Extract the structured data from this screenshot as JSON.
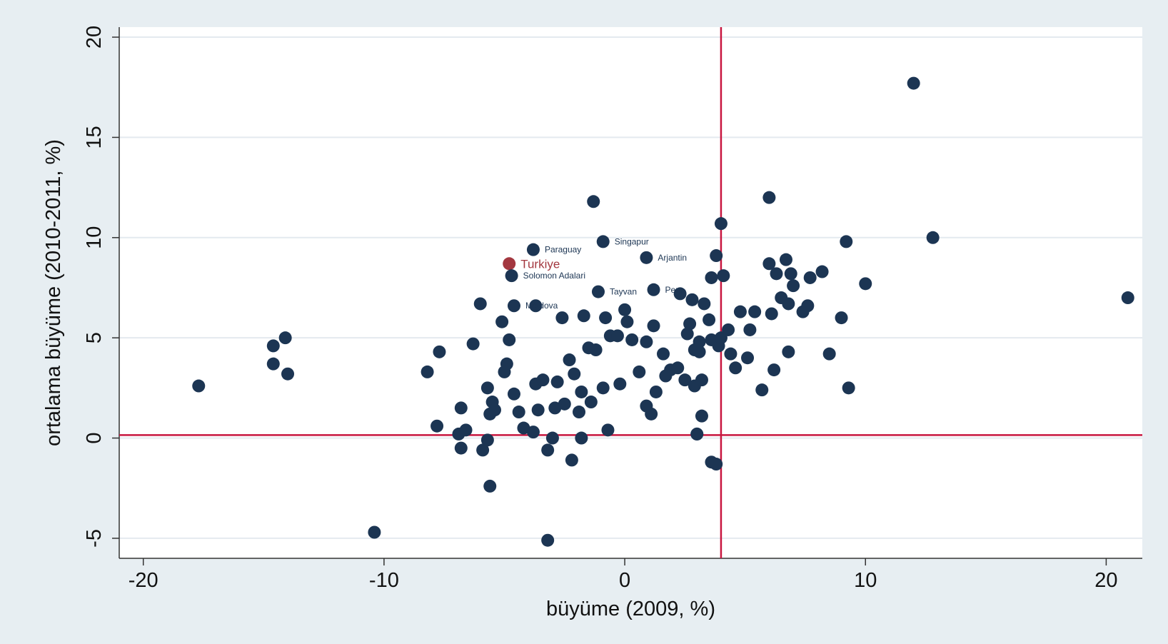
{
  "chart_data": {
    "type": "scatter",
    "title": "",
    "xlabel": "büyüme (2009, %)",
    "ylabel": "ortalama büyüme (2010-2011, %)",
    "xlim": [
      -21,
      21.5
    ],
    "ylim": [
      -6,
      20.5
    ],
    "xticks": [
      -20,
      -10,
      0,
      10,
      20
    ],
    "xtick_labels": [
      "-20",
      "-10",
      "0",
      "10",
      "20"
    ],
    "yticks": [
      -5,
      0,
      5,
      10,
      15,
      20
    ],
    "ytick_labels": [
      "-5",
      "0",
      "5",
      "10",
      "15",
      "20"
    ],
    "grid": "horizontal",
    "reference_lines": {
      "x": 4.0,
      "y": 0.15
    },
    "colors": {
      "point": "#1c3553",
      "highlight": "#a3373f",
      "refline": "#c8163f",
      "plot_bg": "#ffffff",
      "outer_bg": "#e7eef2",
      "grid": "#e4eaef"
    },
    "labeled_points": [
      {
        "label": "Paraguay",
        "x": -3.8,
        "y": 9.4,
        "highlight": false
      },
      {
        "label": "Singapur",
        "x": -0.9,
        "y": 9.8,
        "highlight": false
      },
      {
        "label": "Arjantin",
        "x": 0.9,
        "y": 9.0,
        "highlight": false
      },
      {
        "label": "Turkiye",
        "x": -4.8,
        "y": 8.7,
        "highlight": true
      },
      {
        "label": "Solomon Adalari",
        "x": -4.7,
        "y": 8.1,
        "highlight": false
      },
      {
        "label": "Peru",
        "x": 1.2,
        "y": 7.4,
        "highlight": false
      },
      {
        "label": "Tayvan",
        "x": -1.1,
        "y": 7.3,
        "highlight": false
      },
      {
        "label": "Moldova",
        "x": -4.6,
        "y": 6.6,
        "highlight": false
      }
    ],
    "points": [
      [
        -17.7,
        2.6
      ],
      [
        -14.6,
        4.6
      ],
      [
        -14.1,
        5.0
      ],
      [
        -14.6,
        3.7
      ],
      [
        -14.0,
        3.2
      ],
      [
        -10.4,
        -4.7
      ],
      [
        -8.2,
        3.3
      ],
      [
        -7.7,
        4.3
      ],
      [
        -7.8,
        0.6
      ],
      [
        -6.3,
        4.7
      ],
      [
        -6.0,
        6.7
      ],
      [
        -6.8,
        1.5
      ],
      [
        -6.9,
        0.2
      ],
      [
        -6.6,
        0.4
      ],
      [
        -6.8,
        -0.5
      ],
      [
        -5.9,
        -0.6
      ],
      [
        -5.7,
        -0.1
      ],
      [
        -5.6,
        -2.4
      ],
      [
        -5.7,
        2.5
      ],
      [
        -5.5,
        1.8
      ],
      [
        -5.4,
        1.4
      ],
      [
        -5.6,
        1.2
      ],
      [
        -5.1,
        5.8
      ],
      [
        -4.8,
        4.9
      ],
      [
        -4.9,
        3.7
      ],
      [
        -5.0,
        3.3
      ],
      [
        -4.6,
        2.2
      ],
      [
        -4.4,
        1.3
      ],
      [
        -4.2,
        0.5
      ],
      [
        -3.8,
        0.3
      ],
      [
        -3.7,
        6.6
      ],
      [
        -3.7,
        2.7
      ],
      [
        -3.6,
        1.4
      ],
      [
        -3.4,
        2.9
      ],
      [
        -3.2,
        -0.6
      ],
      [
        -3.2,
        -5.1
      ],
      [
        -3.0,
        0.0
      ],
      [
        -2.9,
        1.5
      ],
      [
        -2.8,
        2.8
      ],
      [
        -2.6,
        6.0
      ],
      [
        -2.5,
        1.7
      ],
      [
        -2.3,
        3.9
      ],
      [
        -2.2,
        -1.1
      ],
      [
        -2.1,
        3.2
      ],
      [
        -1.9,
        1.3
      ],
      [
        -1.8,
        0.0
      ],
      [
        -1.8,
        2.3
      ],
      [
        -1.7,
        6.1
      ],
      [
        -1.5,
        4.5
      ],
      [
        -1.4,
        1.8
      ],
      [
        -1.3,
        11.8
      ],
      [
        -1.2,
        4.4
      ],
      [
        -0.9,
        2.5
      ],
      [
        -0.8,
        6.0
      ],
      [
        -0.7,
        0.4
      ],
      [
        -0.6,
        5.1
      ],
      [
        -0.3,
        5.1
      ],
      [
        -0.2,
        2.7
      ],
      [
        0.0,
        6.4
      ],
      [
        0.1,
        5.8
      ],
      [
        0.3,
        4.9
      ],
      [
        0.6,
        3.3
      ],
      [
        0.9,
        4.8
      ],
      [
        0.9,
        1.6
      ],
      [
        1.1,
        1.2
      ],
      [
        1.2,
        5.6
      ],
      [
        1.3,
        2.3
      ],
      [
        1.6,
        4.2
      ],
      [
        1.7,
        3.1
      ],
      [
        1.9,
        3.4
      ],
      [
        2.2,
        3.5
      ],
      [
        2.5,
        2.9
      ],
      [
        2.6,
        5.2
      ],
      [
        2.7,
        5.7
      ],
      [
        2.9,
        4.4
      ],
      [
        2.9,
        2.6
      ],
      [
        3.0,
        0.2
      ],
      [
        3.1,
        4.3
      ],
      [
        3.2,
        1.1
      ],
      [
        3.3,
        6.7
      ],
      [
        3.5,
        5.9
      ],
      [
        3.6,
        8.0
      ],
      [
        3.8,
        9.1
      ],
      [
        3.9,
        4.6
      ],
      [
        4.0,
        10.7
      ],
      [
        4.1,
        8.1
      ],
      [
        4.3,
        5.4
      ],
      [
        4.4,
        4.2
      ],
      [
        4.6,
        3.5
      ],
      [
        4.8,
        6.3
      ],
      [
        5.1,
        4.0
      ],
      [
        5.2,
        5.4
      ],
      [
        5.4,
        6.3
      ],
      [
        5.7,
        2.4
      ],
      [
        6.0,
        8.7
      ],
      [
        6.1,
        6.2
      ],
      [
        6.2,
        3.4
      ],
      [
        6.0,
        12.0
      ],
      [
        6.3,
        8.2
      ],
      [
        6.5,
        7.0
      ],
      [
        6.7,
        8.9
      ],
      [
        6.8,
        6.7
      ],
      [
        6.9,
        8.2
      ],
      [
        6.8,
        4.3
      ],
      [
        7.0,
        7.6
      ],
      [
        7.4,
        6.3
      ],
      [
        7.6,
        6.6
      ],
      [
        7.7,
        8.0
      ],
      [
        8.2,
        8.3
      ],
      [
        8.5,
        4.2
      ],
      [
        9.0,
        6.0
      ],
      [
        9.2,
        9.8
      ],
      [
        9.3,
        2.5
      ],
      [
        10.0,
        7.7
      ],
      [
        12.0,
        17.7
      ],
      [
        12.8,
        10.0
      ],
      [
        20.9,
        7.0
      ],
      [
        3.6,
        -1.2
      ],
      [
        3.8,
        -1.3
      ],
      [
        3.0,
        0.2
      ],
      [
        3.2,
        2.9
      ],
      [
        3.6,
        4.9
      ],
      [
        4.0,
        5.0
      ],
      [
        2.3,
        7.2
      ],
      [
        2.8,
        6.9
      ],
      [
        3.1,
        4.8
      ]
    ]
  }
}
